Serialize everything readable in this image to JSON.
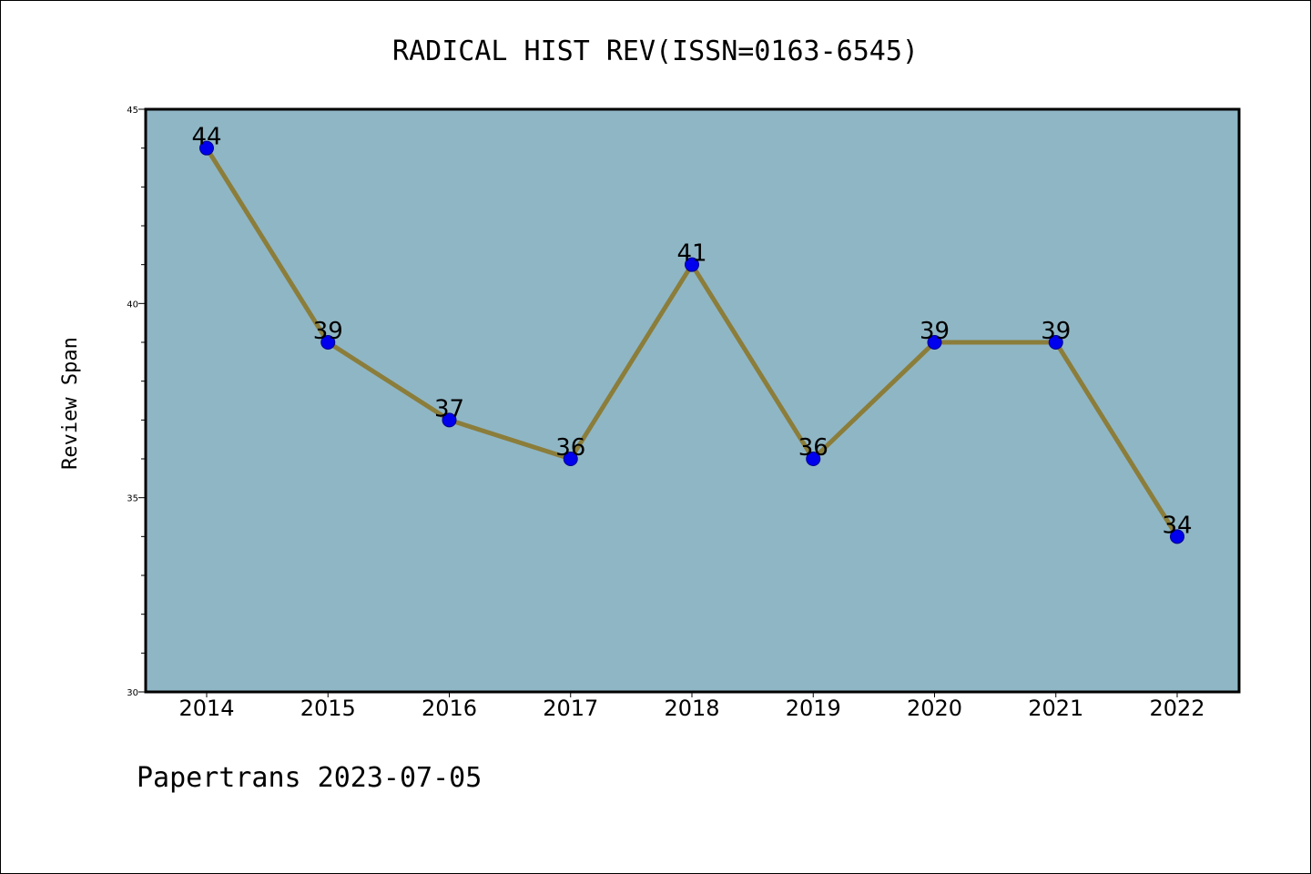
{
  "chart_data": {
    "type": "line",
    "title": "RADICAL HIST REV(ISSN=0163-6545)",
    "xlabel": "",
    "ylabel": "Review Span",
    "categories": [
      "2014",
      "2015",
      "2016",
      "2017",
      "2018",
      "2019",
      "2020",
      "2021",
      "2022"
    ],
    "series": [
      {
        "values": [
          44,
          39,
          37,
          36,
          41,
          36,
          39,
          39,
          34
        ]
      }
    ],
    "ylim": [
      30,
      45
    ],
    "yticks": [
      30,
      35,
      40,
      45
    ],
    "grid": false,
    "legend": "none",
    "data_labels": true,
    "colors": {
      "plot_background": "#8fb6c5",
      "line": "#8b7d3a",
      "marker_fill": "#0000ee",
      "marker_edge": "#00008b"
    }
  },
  "footer": {
    "text": "Papertrans 2023-07-05"
  }
}
